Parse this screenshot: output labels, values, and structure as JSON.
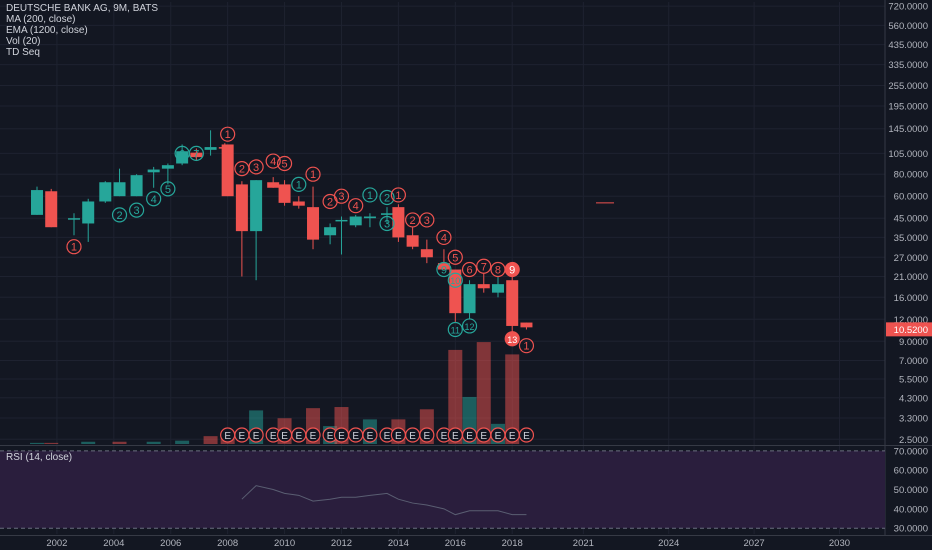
{
  "legend": {
    "title": "DEUTSCHE BANK AG, 9M, BATS",
    "ma": "MA (200, close)",
    "ema": "EMA (1200, close)",
    "vol": "Vol (20)",
    "td": "TD Seq"
  },
  "rsi_title": "RSI (14, close)",
  "colors": {
    "up": "#26a69a",
    "down": "#ef5350",
    "bg": "#131722",
    "rsi_bg": "#2a1e3d",
    "last_price_bg": "#ef5350"
  },
  "chart_data": [
    {
      "type": "candlestick",
      "scale": "log",
      "x_ticks": [
        "2002",
        "2004",
        "2006",
        "2008",
        "2010",
        "2012",
        "2014",
        "2016",
        "2018",
        "2021",
        "2024",
        "2027",
        "2030"
      ],
      "x_tick_years": [
        2002,
        2004,
        2006,
        2008,
        2010,
        2012,
        2014,
        2016,
        2018,
        2020.5,
        2023.5,
        2026.5,
        2029.5
      ],
      "xlim": [
        2000.0,
        2031.1
      ],
      "ylim": [
        2.35,
        760
      ],
      "y_ticks": [
        "720.0000",
        "560.0000",
        "435.0000",
        "335.0000",
        "255.0000",
        "195.0000",
        "145.0000",
        "105.0000",
        "80.0000",
        "60.0000",
        "45.0000",
        "35.0000",
        "27.0000",
        "21.0000",
        "16.0000",
        "12.0000",
        "9.0000",
        "7.0000",
        "5.5000",
        "4.3000",
        "3.3000",
        "2.5000"
      ],
      "y_tick_values": [
        720,
        560,
        435,
        335,
        255,
        195,
        145,
        105,
        80,
        60,
        45,
        35,
        27,
        21,
        16,
        12,
        9,
        7,
        5.5,
        4.3,
        3.3,
        2.5
      ],
      "last_price": "10.5200",
      "last_price_value": 10.52,
      "candles": [
        {
          "t": 2001.3,
          "o": 47,
          "h": 68,
          "l": 47,
          "c": 65
        },
        {
          "t": 2001.8,
          "o": 64,
          "h": 66,
          "l": 40,
          "c": 40
        },
        {
          "t": 2002.6,
          "o": 45,
          "h": 48,
          "l": 36,
          "c": 45
        },
        {
          "t": 2003.1,
          "o": 42,
          "h": 58,
          "l": 33,
          "c": 56
        },
        {
          "t": 2003.7,
          "o": 56,
          "h": 73,
          "l": 55,
          "c": 72
        },
        {
          "t": 2004.2,
          "o": 60,
          "h": 86,
          "l": 60,
          "c": 72
        },
        {
          "t": 2004.8,
          "o": 60,
          "h": 80,
          "l": 60,
          "c": 79
        },
        {
          "t": 2005.4,
          "o": 82,
          "h": 88,
          "l": 67,
          "c": 85
        },
        {
          "t": 2005.9,
          "o": 86,
          "h": 92,
          "l": 70,
          "c": 90
        },
        {
          "t": 2006.4,
          "o": 92,
          "h": 118,
          "l": 90,
          "c": 108
        },
        {
          "t": 2006.9,
          "o": 106,
          "h": 112,
          "l": 95,
          "c": 100
        },
        {
          "t": 2007.4,
          "o": 110,
          "h": 142,
          "l": 102,
          "c": 114
        },
        {
          "t": 2007.9,
          "o": 114,
          "h": 120,
          "l": 100,
          "c": 112
        },
        {
          "t": 2008.0,
          "o": 118,
          "h": 118,
          "l": 60,
          "c": 60
        },
        {
          "t": 2008.5,
          "o": 70,
          "h": 73,
          "l": 21,
          "c": 38
        },
        {
          "t": 2009.0,
          "o": 38,
          "h": 74,
          "l": 20,
          "c": 74
        },
        {
          "t": 2009.6,
          "o": 72,
          "h": 77,
          "l": 67,
          "c": 67
        },
        {
          "t": 2010.0,
          "o": 70,
          "h": 74,
          "l": 53,
          "c": 55
        },
        {
          "t": 2010.5,
          "o": 56,
          "h": 60,
          "l": 51,
          "c": 53
        },
        {
          "t": 2011.0,
          "o": 52,
          "h": 68,
          "l": 30,
          "c": 34
        },
        {
          "t": 2011.6,
          "o": 36,
          "h": 42,
          "l": 32,
          "c": 40
        },
        {
          "t": 2012.0,
          "o": 44,
          "h": 46,
          "l": 28,
          "c": 44
        },
        {
          "t": 2012.5,
          "o": 41,
          "h": 47,
          "l": 40,
          "c": 46
        },
        {
          "t": 2013.0,
          "o": 45,
          "h": 48,
          "l": 40,
          "c": 46
        },
        {
          "t": 2013.6,
          "o": 47,
          "h": 52,
          "l": 42,
          "c": 48
        },
        {
          "t": 2014.0,
          "o": 52,
          "h": 54,
          "l": 33,
          "c": 35
        },
        {
          "t": 2014.5,
          "o": 36,
          "h": 40,
          "l": 30,
          "c": 31
        },
        {
          "t": 2015.0,
          "o": 30,
          "h": 34,
          "l": 25,
          "c": 27
        },
        {
          "t": 2015.6,
          "o": 25,
          "h": 30,
          "l": 23,
          "c": 23
        },
        {
          "t": 2016.0,
          "o": 23,
          "h": 23,
          "l": 11.6,
          "c": 13
        },
        {
          "t": 2016.5,
          "o": 13,
          "h": 20,
          "l": 12,
          "c": 19
        },
        {
          "t": 2017.0,
          "o": 19,
          "h": 22,
          "l": 17,
          "c": 18
        },
        {
          "t": 2017.5,
          "o": 17,
          "h": 21,
          "l": 16,
          "c": 19
        },
        {
          "t": 2018.0,
          "o": 20,
          "h": 21,
          "l": 10,
          "c": 11
        },
        {
          "t": 2018.5,
          "o": 11.5,
          "h": 11.5,
          "l": 10.5,
          "c": 10.8
        }
      ],
      "volume": [
        {
          "t": 2001.3,
          "v": 0.01,
          "up": true
        },
        {
          "t": 2001.8,
          "v": 0.01,
          "up": false
        },
        {
          "t": 2003.1,
          "v": 0.02,
          "up": true
        },
        {
          "t": 2004.2,
          "v": 0.02,
          "up": false
        },
        {
          "t": 2005.4,
          "v": 0.02,
          "up": true
        },
        {
          "t": 2006.4,
          "v": 0.03,
          "up": true
        },
        {
          "t": 2007.4,
          "v": 0.07,
          "up": false
        },
        {
          "t": 2008.0,
          "v": 0.1,
          "up": false
        },
        {
          "t": 2009.0,
          "v": 0.3,
          "up": true
        },
        {
          "t": 2010.0,
          "v": 0.23,
          "up": false
        },
        {
          "t": 2011.0,
          "v": 0.32,
          "up": false
        },
        {
          "t": 2011.6,
          "v": 0.16,
          "up": true
        },
        {
          "t": 2012.0,
          "v": 0.33,
          "up": false
        },
        {
          "t": 2013.0,
          "v": 0.22,
          "up": true
        },
        {
          "t": 2014.0,
          "v": 0.22,
          "up": false
        },
        {
          "t": 2015.0,
          "v": 0.31,
          "up": false
        },
        {
          "t": 2016.0,
          "v": 0.84,
          "up": false
        },
        {
          "t": 2016.5,
          "v": 0.42,
          "up": true
        },
        {
          "t": 2017.0,
          "v": 0.91,
          "up": false
        },
        {
          "t": 2017.5,
          "v": 0.18,
          "up": true
        },
        {
          "t": 2018.0,
          "v": 0.8,
          "up": false
        }
      ],
      "td_labels": [
        {
          "t": 2002.6,
          "v": 31,
          "text": "1",
          "color": "down",
          "filled": false
        },
        {
          "t": 2004.2,
          "v": 47,
          "text": "2",
          "color": "up",
          "filled": false
        },
        {
          "t": 2004.8,
          "v": 50,
          "text": "3",
          "color": "up",
          "filled": false
        },
        {
          "t": 2005.4,
          "v": 58,
          "text": "4",
          "color": "up",
          "filled": false
        },
        {
          "t": 2005.9,
          "v": 66,
          "text": "5",
          "color": "up",
          "filled": false
        },
        {
          "t": 2006.4,
          "v": 105,
          "text": "6",
          "color": "up",
          "filled": false
        },
        {
          "t": 2006.9,
          "v": 105,
          "text": "7",
          "color": "up",
          "filled": false
        },
        {
          "t": 2008.0,
          "v": 135,
          "text": "1",
          "color": "down",
          "filled": false
        },
        {
          "t": 2008.5,
          "v": 86,
          "text": "2",
          "color": "down",
          "filled": false
        },
        {
          "t": 2009.0,
          "v": 88,
          "text": "3",
          "color": "down",
          "filled": false
        },
        {
          "t": 2009.6,
          "v": 95,
          "text": "4",
          "color": "down",
          "filled": false
        },
        {
          "t": 2010.0,
          "v": 92,
          "text": "5",
          "color": "down",
          "filled": false
        },
        {
          "t": 2010.5,
          "v": 70,
          "text": "1",
          "color": "up",
          "filled": false
        },
        {
          "t": 2011.0,
          "v": 80,
          "text": "1",
          "color": "down",
          "filled": false
        },
        {
          "t": 2011.6,
          "v": 56,
          "text": "2",
          "color": "down",
          "filled": false
        },
        {
          "t": 2012.0,
          "v": 60,
          "text": "3",
          "color": "down",
          "filled": false
        },
        {
          "t": 2012.5,
          "v": 53,
          "text": "4",
          "color": "down",
          "filled": false
        },
        {
          "t": 2013.0,
          "v": 61,
          "text": "1",
          "color": "up",
          "filled": false
        },
        {
          "t": 2013.6,
          "v": 59,
          "text": "2",
          "color": "up",
          "filled": false
        },
        {
          "t": 2013.6,
          "v": 42,
          "text": "3",
          "color": "up",
          "filled": false
        },
        {
          "t": 2014.0,
          "v": 61,
          "text": "1",
          "color": "down",
          "filled": false
        },
        {
          "t": 2014.5,
          "v": 44,
          "text": "2",
          "color": "down",
          "filled": false
        },
        {
          "t": 2015.0,
          "v": 44,
          "text": "3",
          "color": "down",
          "filled": false
        },
        {
          "t": 2015.6,
          "v": 35,
          "text": "4",
          "color": "down",
          "filled": false
        },
        {
          "t": 2016.0,
          "v": 27,
          "text": "5",
          "color": "down",
          "filled": false
        },
        {
          "t": 2015.6,
          "v": 23,
          "text": "9",
          "color": "up",
          "filled": false
        },
        {
          "t": 2016.0,
          "v": 20,
          "text": "10",
          "color": "up",
          "filled": false
        },
        {
          "t": 2016.5,
          "v": 23,
          "text": "6",
          "color": "down",
          "filled": false
        },
        {
          "t": 2017.0,
          "v": 24,
          "text": "7",
          "color": "down",
          "filled": false
        },
        {
          "t": 2017.5,
          "v": 23,
          "text": "8",
          "color": "down",
          "filled": false
        },
        {
          "t": 2018.0,
          "v": 23,
          "text": "9",
          "color": "down",
          "filled": true
        },
        {
          "t": 2016.0,
          "v": 10.5,
          "text": "11",
          "color": "up",
          "filled": false
        },
        {
          "t": 2016.5,
          "v": 11,
          "text": "12",
          "color": "up",
          "filled": false
        },
        {
          "t": 2018.0,
          "v": 9.3,
          "text": "13",
          "color": "down",
          "filled": true
        },
        {
          "t": 2018.5,
          "v": 8.5,
          "text": "1",
          "color": "down",
          "filled": false
        }
      ],
      "e_markers": {
        "label": "E",
        "years": [
          2008.0,
          2008.5,
          2009.0,
          2009.6,
          2010.0,
          2010.5,
          2011.0,
          2011.6,
          2012.0,
          2012.5,
          2013.0,
          2013.6,
          2014.0,
          2014.5,
          2015.0,
          2015.6,
          2016.0,
          2016.5,
          2017.0,
          2017.5,
          2018.0,
          2018.5
        ]
      }
    },
    {
      "type": "line",
      "title": "RSI (14, close)",
      "ylim": [
        27,
        72
      ],
      "y_ticks": [
        "70.0000",
        "60.0000",
        "50.0000",
        "40.0000",
        "30.0000"
      ],
      "y_tick_values": [
        70,
        60,
        50,
        40,
        30
      ],
      "band": [
        30,
        70
      ],
      "x": [
        2008.5,
        2009.0,
        2009.6,
        2010.0,
        2010.5,
        2011.0,
        2011.6,
        2012.0,
        2012.5,
        2013.0,
        2013.6,
        2014.0,
        2014.5,
        2015.0,
        2015.6,
        2016.0,
        2016.5,
        2017.0,
        2017.5,
        2018.0,
        2018.5
      ],
      "values": [
        45,
        52,
        50,
        48,
        47,
        44,
        45,
        46,
        46,
        47,
        48,
        45,
        43,
        42,
        40,
        37,
        39,
        39,
        39,
        37,
        37
      ]
    }
  ]
}
